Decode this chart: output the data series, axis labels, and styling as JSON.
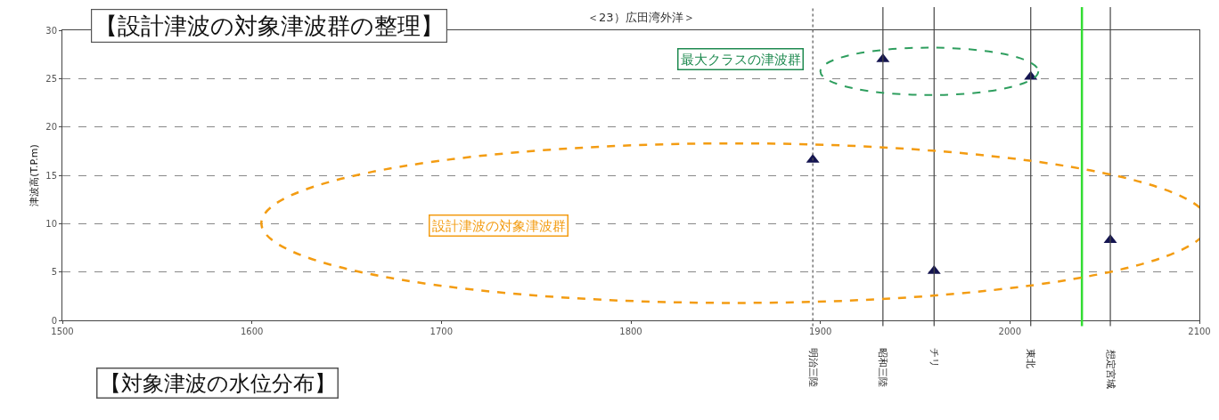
{
  "chart_data": {
    "type": "scatter",
    "title": "【設計津波の対象津波群の整理】",
    "subtitle": "＜23）広田湾外洋＞",
    "ylabel": "津波高(T.P.m)",
    "x": [
      1896,
      1933,
      1960,
      2011,
      2053
    ],
    "series": [
      {
        "color": "#141450",
        "values": [
          16.6,
          27.0,
          5.1,
          25.2,
          8.3
        ]
      }
    ],
    "marker": "triangle",
    "xlim": [
      1500,
      2100
    ],
    "xticks": [
      1500,
      1600,
      1700,
      1800,
      1900,
      2000,
      2100
    ],
    "ylim": [
      0,
      30
    ],
    "yticks": [
      0,
      5,
      10,
      15,
      20,
      25,
      30
    ],
    "grid": "y",
    "ref_lines": [
      {
        "axis": "x",
        "value": 1896,
        "label": "明治三陸",
        "color": "#555555",
        "line_style": "dotted"
      },
      {
        "axis": "x",
        "value": 1933,
        "label": "昭和三陸",
        "color": "#444444",
        "line_style": "solid"
      },
      {
        "axis": "x",
        "value": 1960,
        "label": "チリ",
        "color": "#444444",
        "line_style": "solid"
      },
      {
        "axis": "x",
        "value": 2011,
        "label": "東北",
        "color": "#444444",
        "line_style": "solid"
      },
      {
        "axis": "x",
        "value": 2038,
        "color": "#33dd33",
        "line_style": "solid"
      },
      {
        "axis": "x",
        "value": 2053,
        "label": "想定宮城",
        "color": "#444444",
        "line_style": "solid"
      }
    ],
    "annotations": [
      "最大クラスの津波群",
      "設計津波の対象津波群",
      "【対象津波の水位分布】"
    ]
  }
}
